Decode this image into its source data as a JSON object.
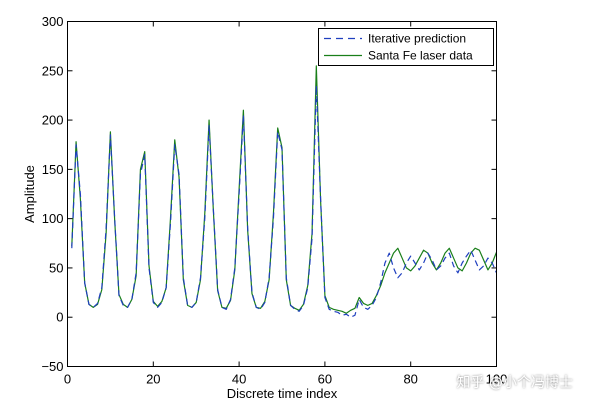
{
  "chart_data": {
    "type": "line",
    "xlabel": "Discrete time index",
    "ylabel": "Amplitude",
    "xlim": [
      0,
      100
    ],
    "ylim": [
      -50,
      300
    ],
    "x_ticks": [
      0,
      20,
      40,
      60,
      80,
      100
    ],
    "y_ticks": [
      -50,
      0,
      50,
      100,
      150,
      200,
      250,
      300
    ],
    "grid": false,
    "legend_position": "top-right",
    "x": [
      1,
      2,
      3,
      4,
      5,
      6,
      7,
      8,
      9,
      10,
      11,
      12,
      13,
      14,
      15,
      16,
      17,
      18,
      19,
      20,
      21,
      22,
      23,
      24,
      25,
      26,
      27,
      28,
      29,
      30,
      31,
      32,
      33,
      34,
      35,
      36,
      37,
      38,
      39,
      40,
      41,
      42,
      43,
      44,
      45,
      46,
      47,
      48,
      49,
      50,
      51,
      52,
      53,
      54,
      55,
      56,
      57,
      58,
      59,
      60,
      61,
      62,
      63,
      64,
      65,
      66,
      67,
      68,
      69,
      70,
      71,
      72,
      73,
      74,
      75,
      76,
      77,
      78,
      79,
      80,
      81,
      82,
      83,
      84,
      85,
      86,
      87,
      88,
      89,
      90,
      91,
      92,
      93,
      94,
      95,
      96,
      97,
      98,
      99,
      100
    ],
    "series": [
      {
        "name": "Iterative prediction",
        "color": "#1f3fbf",
        "style": "dashed",
        "values": [
          70,
          175,
          125,
          35,
          13,
          10,
          14,
          30,
          90,
          185,
          100,
          22,
          12,
          10,
          18,
          45,
          145,
          165,
          50,
          15,
          10,
          15,
          30,
          95,
          175,
          145,
          40,
          12,
          10,
          15,
          40,
          100,
          195,
          110,
          28,
          10,
          8,
          18,
          50,
          125,
          205,
          90,
          25,
          10,
          8,
          15,
          40,
          100,
          188,
          170,
          40,
          12,
          8,
          6,
          12,
          30,
          80,
          235,
          120,
          20,
          8,
          6,
          5,
          2,
          3,
          0,
          2,
          18,
          10,
          8,
          12,
          20,
          35,
          55,
          65,
          50,
          40,
          45,
          55,
          62,
          55,
          48,
          55,
          65,
          58,
          48,
          52,
          60,
          65,
          52,
          45,
          55,
          62,
          68,
          58,
          48,
          52,
          60,
          55,
          45
        ]
      },
      {
        "name": "Santa Fe laser data",
        "color": "#1a7f1a",
        "style": "solid",
        "values": [
          72,
          178,
          120,
          35,
          13,
          10,
          13,
          28,
          85,
          188,
          98,
          23,
          13,
          10,
          18,
          42,
          150,
          168,
          52,
          16,
          11,
          16,
          30,
          100,
          180,
          142,
          38,
          12,
          10,
          15,
          38,
          105,
          200,
          108,
          27,
          10,
          9,
          17,
          48,
          130,
          210,
          88,
          24,
          10,
          9,
          16,
          38,
          105,
          192,
          172,
          38,
          12,
          9,
          7,
          13,
          32,
          85,
          255,
          118,
          22,
          10,
          8,
          7,
          6,
          4,
          7,
          9,
          20,
          14,
          12,
          14,
          22,
          32,
          45,
          55,
          65,
          70,
          60,
          50,
          47,
          52,
          60,
          68,
          65,
          55,
          48,
          55,
          65,
          70,
          60,
          50,
          47,
          55,
          65,
          70,
          68,
          58,
          48,
          55,
          66
        ]
      }
    ]
  },
  "watermark": "知乎 @小个冯博士"
}
